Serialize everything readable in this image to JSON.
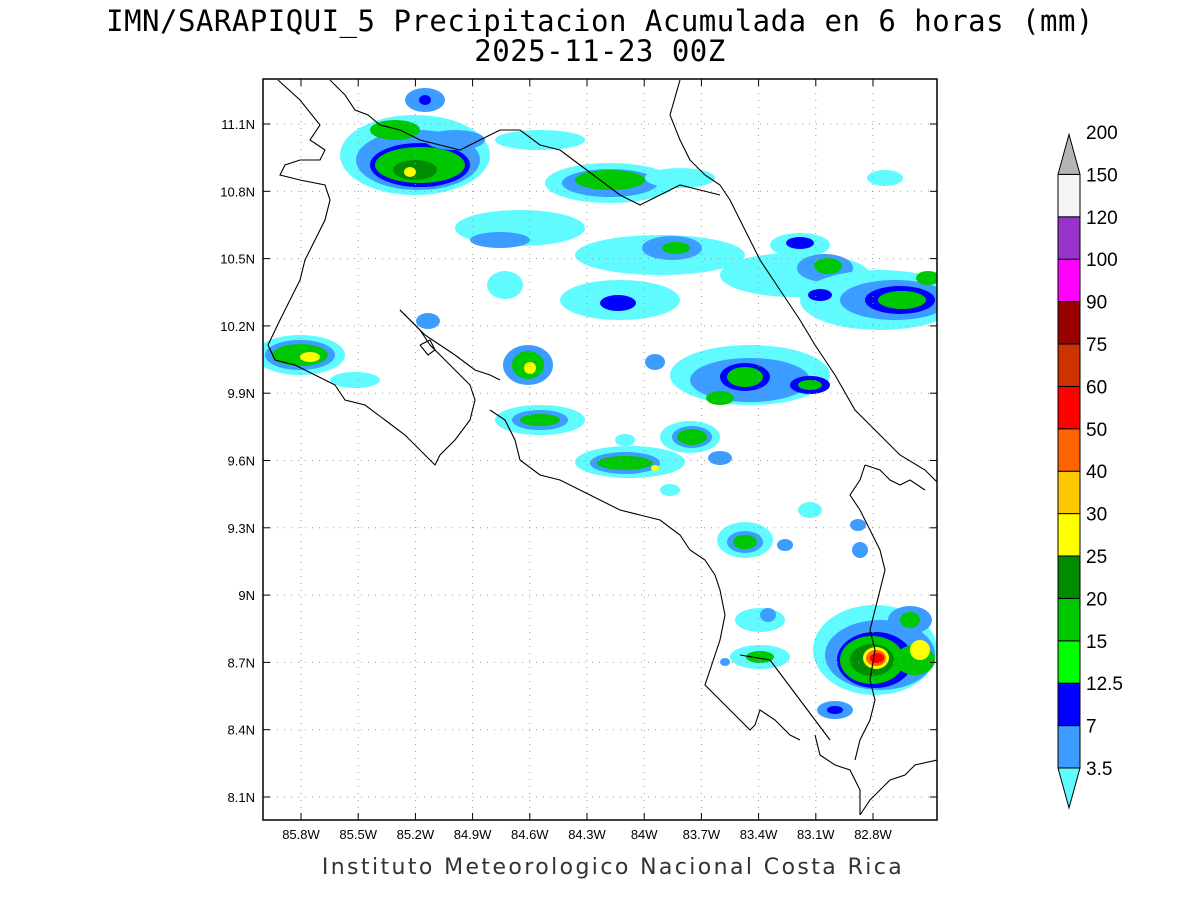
{
  "title": {
    "line1": "IMN/SARAPIQUI_5 Precipitacion Acumulada en 6 horas (mm)",
    "line2": "2025-11-23 00Z"
  },
  "footer": "Instituto Meteorologico Nacional Costa Rica",
  "map": {
    "lon_range": [
      -86.05,
      -82.55
    ],
    "lat_range": [
      8.0,
      11.3
    ],
    "lat_ticks": [
      "11.1N",
      "10.8N",
      "10.5N",
      "10.2N",
      "9.9N",
      "9.6N",
      "9.3N",
      "9N",
      "8.7N",
      "8.4N",
      "8.1N"
    ],
    "lon_ticks": [
      "85.8W",
      "85.5W",
      "85.2W",
      "84.9W",
      "84.6W",
      "84.3W",
      "84W",
      "83.7W",
      "83.4W",
      "83.1W",
      "82.8W"
    ],
    "grid": "dotted"
  },
  "colorbar": {
    "levels": [
      "3.5",
      "7",
      "12.5",
      "15",
      "20",
      "25",
      "30",
      "40",
      "50",
      "60",
      "75",
      "90",
      "100",
      "120",
      "150",
      "200"
    ],
    "colors": [
      "#5ffbff",
      "#3d9cff",
      "#0000ff",
      "#00ff00",
      "#00c800",
      "#008c00",
      "#ffff00",
      "#ffc800",
      "#ff6400",
      "#ff0000",
      "#cc3300",
      "#990000",
      "#ff00ff",
      "#9933cc",
      "#f5f5f5",
      "#b4b4b4"
    ]
  }
}
